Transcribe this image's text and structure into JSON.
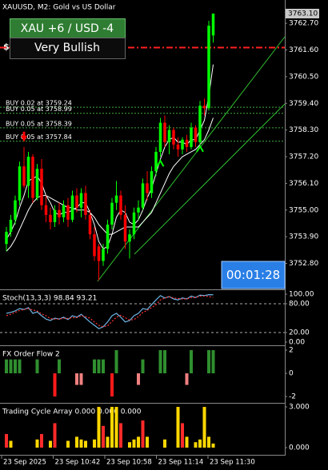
{
  "chart_data": [
    {
      "type": "candlestick",
      "title": "XAUUSD, M2:  Gold vs US Dollar",
      "bias_label": "XAU +6 / USD -4",
      "bias_text": "Very Bullish",
      "timer": "00:01:28",
      "stop_mark": "$",
      "ylim": [
        3751.73,
        3763.66
      ],
      "yticks": [
        {
          "value": 3762.7,
          "label": "3762.70"
        },
        {
          "value": 3761.6,
          "label": "3761.60"
        },
        {
          "value": 3760.5,
          "label": "3760.50"
        },
        {
          "value": 3759.4,
          "label": "3759.40"
        },
        {
          "value": 3758.3,
          "label": "3758.30"
        },
        {
          "value": 3757.2,
          "label": "3757.20"
        },
        {
          "value": 3756.1,
          "label": "3756.10"
        },
        {
          "value": 3755,
          "label": "3755.00"
        },
        {
          "value": 3753.9,
          "label": "3753.90"
        },
        {
          "value": 3752.8,
          "label": "3752.80"
        }
      ],
      "last_price": {
        "value": 3763.1,
        "label": "3763.10"
      },
      "stop_level": 3761.7,
      "buy_orders": [
        {
          "label": "BUY 0.02 at 3759.24",
          "price": 3759.24
        },
        {
          "label": "BUY 0.05 at 3758.99",
          "price": 3758.99
        },
        {
          "label": "BUY 0.05 at 3758.39",
          "price": 3758.39
        },
        {
          "label": "BUY 0.05 at 3757.84",
          "price": 3757.84
        }
      ],
      "bull_color": "#00ff00",
      "bear_color": "#ff0000",
      "ma_color": "#ffffff",
      "order_color": "#3fa83f",
      "stop_color": "#ff2020",
      "sell_arrows": [
        {
          "index": 4,
          "price": 3757.9
        }
      ],
      "buy_arrows": [
        {
          "index": 35,
          "price": 3756.9
        },
        {
          "index": 44,
          "price": 3757.5
        }
      ],
      "x_labels": [
        "23 Sep 2025",
        "23 Sep 10:42",
        "23 Sep 10:58",
        "23 Sep 11:14",
        "23 Sep 11:30"
      ],
      "candles": [
        {
          "o": 3753.6,
          "h": 3754.3,
          "l": 3753.3,
          "c": 3754.1
        },
        {
          "o": 3754.1,
          "h": 3754.8,
          "l": 3753.9,
          "c": 3754.6
        },
        {
          "o": 3754.6,
          "h": 3755.6,
          "l": 3754.4,
          "c": 3755.4
        },
        {
          "o": 3755.4,
          "h": 3757.0,
          "l": 3755.2,
          "c": 3756.8
        },
        {
          "o": 3756.8,
          "h": 3757.6,
          "l": 3755.9,
          "c": 3756.0
        },
        {
          "o": 3756.0,
          "h": 3757.4,
          "l": 3755.5,
          "c": 3757.2
        },
        {
          "o": 3757.2,
          "h": 3757.3,
          "l": 3755.3,
          "c": 3755.5
        },
        {
          "o": 3755.5,
          "h": 3756.9,
          "l": 3755.4,
          "c": 3756.7
        },
        {
          "o": 3756.7,
          "h": 3757.1,
          "l": 3755.0,
          "c": 3755.2
        },
        {
          "o": 3755.2,
          "h": 3755.6,
          "l": 3754.5,
          "c": 3754.8
        },
        {
          "o": 3754.8,
          "h": 3755.1,
          "l": 3754.2,
          "c": 3754.5
        },
        {
          "o": 3754.5,
          "h": 3755.2,
          "l": 3754.3,
          "c": 3755.0
        },
        {
          "o": 3755.0,
          "h": 3755.3,
          "l": 3754.4,
          "c": 3754.7
        },
        {
          "o": 3754.7,
          "h": 3755.4,
          "l": 3754.5,
          "c": 3755.2
        },
        {
          "o": 3755.2,
          "h": 3755.5,
          "l": 3754.3,
          "c": 3754.6
        },
        {
          "o": 3754.6,
          "h": 3755.8,
          "l": 3754.5,
          "c": 3755.6
        },
        {
          "o": 3755.6,
          "h": 3755.9,
          "l": 3754.9,
          "c": 3755.1
        },
        {
          "o": 3755.1,
          "h": 3755.9,
          "l": 3754.7,
          "c": 3755.7
        },
        {
          "o": 3755.7,
          "h": 3756.0,
          "l": 3754.6,
          "c": 3754.8
        },
        {
          "o": 3754.8,
          "h": 3755.0,
          "l": 3753.8,
          "c": 3754.0
        },
        {
          "o": 3754.0,
          "h": 3754.3,
          "l": 3752.9,
          "c": 3753.1
        },
        {
          "o": 3753.5,
          "h": 3753.6,
          "l": 3752.1,
          "c": 3752.9
        },
        {
          "o": 3752.9,
          "h": 3753.6,
          "l": 3752.7,
          "c": 3753.4
        },
        {
          "o": 3753.4,
          "h": 3754.6,
          "l": 3753.2,
          "c": 3754.4
        },
        {
          "o": 3754.4,
          "h": 3755.5,
          "l": 3754.2,
          "c": 3755.3
        },
        {
          "o": 3755.3,
          "h": 3756.2,
          "l": 3755.0,
          "c": 3755.6
        },
        {
          "o": 3755.6,
          "h": 3755.8,
          "l": 3754.6,
          "c": 3754.8
        },
        {
          "o": 3754.8,
          "h": 3755.2,
          "l": 3753.4,
          "c": 3753.7
        },
        {
          "o": 3753.7,
          "h": 3754.2,
          "l": 3753.0,
          "c": 3754.0
        },
        {
          "o": 3754.0,
          "h": 3755.1,
          "l": 3753.8,
          "c": 3754.9
        },
        {
          "o": 3754.9,
          "h": 3755.4,
          "l": 3754.6,
          "c": 3755.1
        },
        {
          "o": 3755.1,
          "h": 3756.3,
          "l": 3755.0,
          "c": 3756.1
        },
        {
          "o": 3756.1,
          "h": 3756.6,
          "l": 3755.4,
          "c": 3755.7
        },
        {
          "o": 3755.7,
          "h": 3756.8,
          "l": 3755.5,
          "c": 3756.6
        },
        {
          "o": 3756.6,
          "h": 3757.6,
          "l": 3756.4,
          "c": 3757.4
        },
        {
          "o": 3757.4,
          "h": 3758.8,
          "l": 3757.2,
          "c": 3758.6
        },
        {
          "o": 3758.6,
          "h": 3758.9,
          "l": 3757.6,
          "c": 3757.8
        },
        {
          "o": 3757.8,
          "h": 3758.5,
          "l": 3757.3,
          "c": 3758.3
        },
        {
          "o": 3758.3,
          "h": 3758.4,
          "l": 3757.5,
          "c": 3757.7
        },
        {
          "o": 3757.7,
          "h": 3758.0,
          "l": 3757.2,
          "c": 3757.5
        },
        {
          "o": 3757.5,
          "h": 3758.0,
          "l": 3757.3,
          "c": 3757.9
        },
        {
          "o": 3757.9,
          "h": 3758.1,
          "l": 3757.4,
          "c": 3757.6
        },
        {
          "o": 3757.6,
          "h": 3758.6,
          "l": 3757.5,
          "c": 3758.4
        },
        {
          "o": 3758.4,
          "h": 3758.5,
          "l": 3757.6,
          "c": 3757.8
        },
        {
          "o": 3757.8,
          "h": 3759.5,
          "l": 3757.7,
          "c": 3759.3
        },
        {
          "o": 3759.3,
          "h": 3759.6,
          "l": 3758.9,
          "c": 3759.2
        },
        {
          "o": 3759.2,
          "h": 3762.8,
          "l": 3759.1,
          "c": 3762.6
        },
        {
          "o": 3762.2,
          "h": 3763.1,
          "l": 3761.9,
          "c": 3763.1
        }
      ],
      "ma_fast": [
        3753.8,
        3754.1,
        3754.5,
        3755.1,
        3755.6,
        3756.2,
        3756.3,
        3756.4,
        3756.1,
        3755.6,
        3755.3,
        3754.9,
        3754.8,
        3754.9,
        3754.9,
        3755.0,
        3755.1,
        3755.3,
        3755.3,
        3754.9,
        3754.4,
        3753.7,
        3753.4,
        3753.5,
        3754.0,
        3754.7,
        3755.0,
        3754.9,
        3754.5,
        3754.4,
        3754.6,
        3755.0,
        3755.5,
        3755.9,
        3756.5,
        3757.1,
        3757.6,
        3757.9,
        3758.0,
        3757.8,
        3757.8,
        3757.7,
        3757.9,
        3757.9,
        3758.3,
        3758.7,
        3759.7,
        3761.0
      ],
      "ma_slow": [
        3753.3,
        3753.5,
        3753.8,
        3754.2,
        3754.6,
        3755.0,
        3755.3,
        3755.5,
        3755.6,
        3755.6,
        3755.5,
        3755.4,
        3755.3,
        3755.2,
        3755.1,
        3755.1,
        3755.0,
        3755.0,
        3755.0,
        3754.9,
        3754.7,
        3754.4,
        3754.2,
        3754.0,
        3754.0,
        3754.1,
        3754.2,
        3754.3,
        3754.3,
        3754.3,
        3754.3,
        3754.5,
        3754.7,
        3754.9,
        3755.3,
        3755.7,
        3756.1,
        3756.5,
        3756.8,
        3757.0,
        3757.2,
        3757.3,
        3757.4,
        3757.5,
        3757.7,
        3757.9,
        3758.3,
        3758.8
      ]
    },
    {
      "type": "line",
      "title": "Stoch(13,3,3) 98.84 93.21",
      "ylim": [
        -6.7,
        106.7
      ],
      "yticks": [
        {
          "value": 100,
          "label": "100.00"
        },
        {
          "value": 80,
          "label": "80.00"
        },
        {
          "value": 20,
          "label": "20.00"
        },
        {
          "value": 0,
          "label": "0.00"
        }
      ],
      "levels": [
        80,
        20
      ],
      "series": [
        {
          "color": "#6cb4e4",
          "values": [
            60,
            62,
            65,
            70,
            68,
            72,
            60,
            63,
            55,
            48,
            45,
            50,
            48,
            52,
            47,
            55,
            52,
            58,
            50,
            42,
            35,
            28,
            32,
            42,
            55,
            60,
            52,
            42,
            45,
            55,
            60,
            70,
            68,
            78,
            88,
            97,
            92,
            95,
            90,
            88,
            92,
            90,
            96,
            93,
            98,
            97,
            99,
            98.84
          ]
        },
        {
          "color": "#ff3030",
          "dashed": true,
          "values": [
            55,
            58,
            62,
            66,
            68,
            70,
            67,
            65,
            59,
            55,
            49,
            48,
            48,
            50,
            49,
            51,
            51,
            55,
            53,
            50,
            42,
            35,
            32,
            34,
            43,
            52,
            56,
            51,
            46,
            47,
            53,
            62,
            66,
            72,
            78,
            88,
            92,
            95,
            92,
            91,
            90,
            90,
            93,
            93,
            96,
            96,
            95,
            93.21
          ]
        }
      ]
    },
    {
      "type": "bar",
      "title": "FX Order Flow 2",
      "ylim": [
        -2.55,
        2.28
      ],
      "yticks": [
        2,
        0,
        -2
      ],
      "up_color": "#2f8f2f",
      "down_color": "#ff1a1a",
      "weak_down_color": "#f08080",
      "values": [
        1.2,
        1.2,
        1.2,
        1.2,
        0,
        0,
        0,
        1.2,
        0,
        0,
        0,
        -2,
        1.2,
        0,
        0,
        0,
        -1,
        -1,
        0,
        0,
        1.2,
        1.2,
        1.2,
        0,
        -2,
        2,
        0,
        0,
        0,
        0,
        -1,
        1.2,
        0,
        0,
        0,
        2,
        2,
        0,
        0,
        0,
        0,
        -1,
        2,
        0,
        0,
        0,
        2,
        2
      ]
    },
    {
      "type": "bar",
      "title": "Trading Cycle Array 0.000 0.000 0.000",
      "ylim": [
        -0.53,
        3.18
      ],
      "yticks": [
        {
          "value": 3,
          "label": "3.000"
        },
        {
          "value": 0,
          "label": "0.000"
        }
      ],
      "up_color": "#ffd700",
      "down_color": "#ff2a2a",
      "values": [
        1,
        0.5,
        0,
        0,
        0,
        0,
        0,
        0.6,
        1,
        0,
        0.5,
        1.8,
        0,
        0,
        0.5,
        0,
        0.8,
        0.6,
        0.5,
        0,
        0.6,
        3,
        1.6,
        0.8,
        3,
        3,
        1.8,
        0,
        0.4,
        0.6,
        0.8,
        2,
        0.8,
        0,
        0,
        0,
        0.6,
        0,
        0,
        3,
        1.8,
        0.8,
        0,
        0.4,
        0.6,
        3,
        0.8,
        0.3
      ]
    }
  ]
}
